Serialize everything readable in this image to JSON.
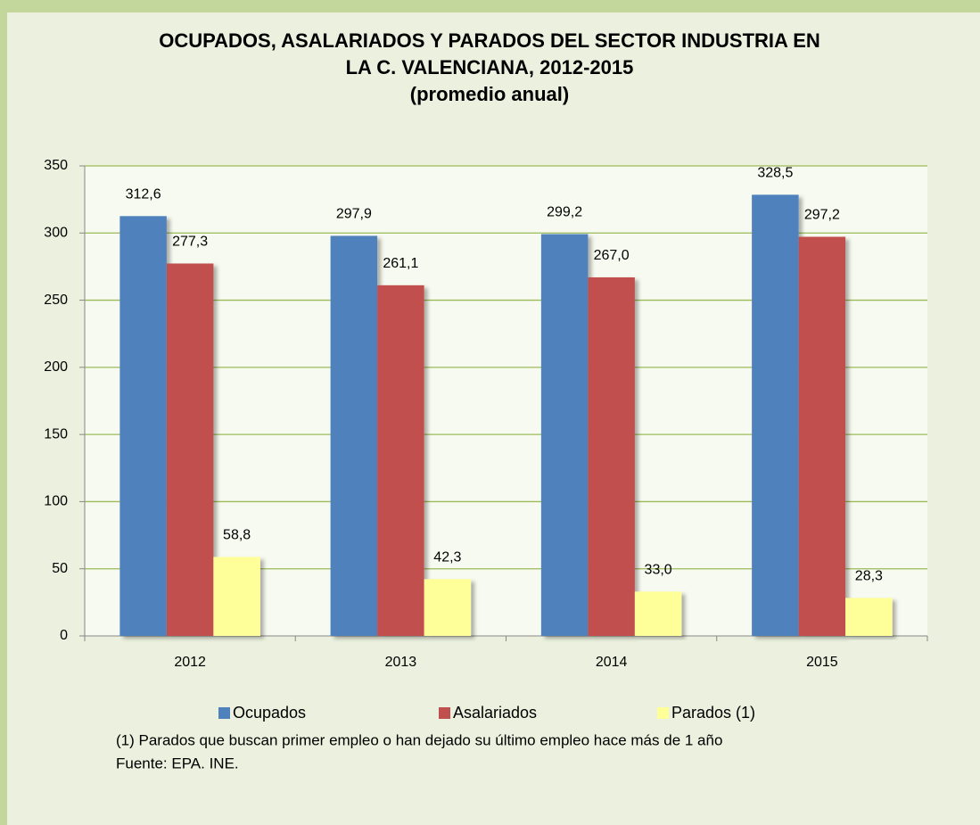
{
  "chart_data": {
    "type": "bar",
    "title": [
      "OCUPADOS, ASALARIADOS Y PARADOS DEL SECTOR  INDUSTRIA EN",
      "LA C. VALENCIANA, 2012-2015",
      "(promedio anual)"
    ],
    "categories": [
      "2012",
      "2013",
      "2014",
      "2015"
    ],
    "series": [
      {
        "name": "Ocupados",
        "color": "#4f81bd",
        "values": [
          312.6,
          297.9,
          299.2,
          328.5
        ],
        "value_labels": [
          "312,6",
          "297,9",
          "299,2",
          "328,5"
        ]
      },
      {
        "name": "Asalariados",
        "color": "#c0504d",
        "values": [
          277.3,
          261.1,
          267.0,
          297.2
        ],
        "value_labels": [
          "277,3",
          "261,1",
          "267,0",
          "297,2"
        ]
      },
      {
        "name": "Parados (1)",
        "color": "#ffff99",
        "values": [
          58.8,
          42.3,
          33.0,
          28.3
        ],
        "value_labels": [
          "58,8",
          "42,3",
          "33,0",
          "28,3"
        ]
      }
    ],
    "ylim": [
      0,
      350
    ],
    "yticks": [
      0,
      50,
      100,
      150,
      200,
      250,
      300,
      350
    ],
    "grid": true,
    "legend": "bottom",
    "notes": [
      "(1) Parados que buscan primer empleo o han dejado su último empleo hace más de 1 año",
      "Fuente: EPA. INE."
    ]
  }
}
